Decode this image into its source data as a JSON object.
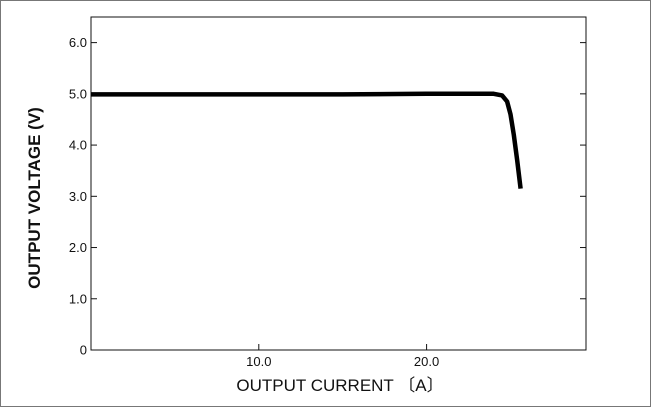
{
  "chart_data": {
    "type": "line",
    "title": "",
    "xlabel": "OUTPUT  CURRENT  〔A〕",
    "ylabel": "OUTPUT  VOLTAGE  (V)",
    "xlim": [
      0,
      29.5
    ],
    "ylim": [
      0,
      6.5
    ],
    "x_ticks": [
      10,
      20
    ],
    "x_tick_labels": [
      "10.0",
      "20.0"
    ],
    "y_ticks": [
      0,
      1,
      2,
      3,
      4,
      5,
      6
    ],
    "y_tick_labels": [
      "0",
      "1.0",
      "2.0",
      "3.0",
      "4.0",
      "5.0",
      "6.0"
    ],
    "grid": false,
    "series": [
      {
        "x": [
          0,
          5,
          10,
          15,
          20,
          24,
          24.5,
          24.8,
          25.0,
          25.2,
          25.4,
          25.6
        ],
        "y": [
          4.99,
          4.99,
          4.99,
          4.99,
          5.0,
          5.0,
          4.97,
          4.85,
          4.6,
          4.2,
          3.7,
          3.15
        ]
      }
    ],
    "line_color": "#000000"
  }
}
